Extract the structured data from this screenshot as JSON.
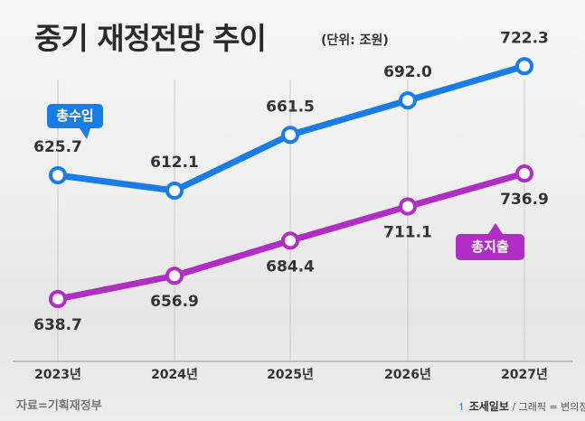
{
  "chart_data": {
    "type": "line",
    "title": "중기 재정전망 추이",
    "unit": "(단위: 조원)",
    "categories": [
      "2023년",
      "2024년",
      "2025년",
      "2026년",
      "2027년"
    ],
    "series": [
      {
        "name": "총수입",
        "color": "#1a7de6",
        "values": [
          625.7,
          612.1,
          661.5,
          692.0,
          722.3
        ],
        "labels": [
          "625.7",
          "612.1",
          "661.5",
          "692.0",
          "722.3"
        ]
      },
      {
        "name": "총지출",
        "color": "#b02ec3",
        "values": [
          638.7,
          656.9,
          684.4,
          711.1,
          736.9
        ],
        "labels": [
          "638.7",
          "656.9",
          "684.4",
          "711.1",
          "736.9"
        ]
      }
    ],
    "grid": "vertical"
  },
  "footer": {
    "source": "자료=기획재정부",
    "brand": "조세일보",
    "credit": "/ 그래픽 = 변의정"
  }
}
